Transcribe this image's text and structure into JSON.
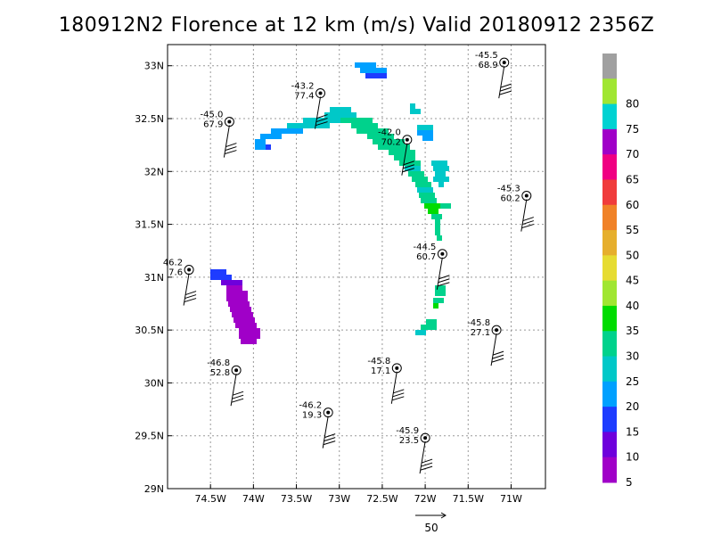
{
  "chart_data": {
    "type": "scatter",
    "title": "180912N2 Florence at 12 km (m/s) Valid 20180912 2356Z",
    "xlabel": "",
    "ylabel": "",
    "xlim": [
      -75.0,
      -70.6
    ],
    "ylim": [
      29.0,
      33.2
    ],
    "grid": true,
    "x_ticks": [
      {
        "value": -74.5,
        "label": "74.5W"
      },
      {
        "value": -74.0,
        "label": "74W"
      },
      {
        "value": -73.5,
        "label": "73.5W"
      },
      {
        "value": -73.0,
        "label": "73W"
      },
      {
        "value": -72.5,
        "label": "72.5W"
      },
      {
        "value": -72.0,
        "label": "72W"
      },
      {
        "value": -71.5,
        "label": "71.5W"
      },
      {
        "value": -71.0,
        "label": "71W"
      }
    ],
    "y_ticks": [
      {
        "value": 29.0,
        "label": "29N"
      },
      {
        "value": 29.5,
        "label": "29.5N"
      },
      {
        "value": 30.0,
        "label": "30N"
      },
      {
        "value": 30.5,
        "label": "30.5N"
      },
      {
        "value": 31.0,
        "label": "31N"
      },
      {
        "value": 31.5,
        "label": "31.5N"
      },
      {
        "value": 32.0,
        "label": "32N"
      },
      {
        "value": 32.5,
        "label": "32.5N"
      },
      {
        "value": 33.0,
        "label": "33N"
      }
    ],
    "colorbar": {
      "levels": [
        {
          "label": "",
          "color": "#a0a0a0"
        },
        {
          "label": "80",
          "color": "#a0e632"
        },
        {
          "label": "75",
          "color": "#00d2d2"
        },
        {
          "label": "70",
          "color": "#a000c8"
        },
        {
          "label": "65",
          "color": "#f00082"
        },
        {
          "label": "60",
          "color": "#f03c3c"
        },
        {
          "label": "55",
          "color": "#f08228"
        },
        {
          "label": "50",
          "color": "#e6af2d"
        },
        {
          "label": "45",
          "color": "#e6dc32"
        },
        {
          "label": "40",
          "color": "#a0e632"
        },
        {
          "label": "35",
          "color": "#00dc00"
        },
        {
          "label": "30",
          "color": "#00d28c"
        },
        {
          "label": "25",
          "color": "#00c8c8"
        },
        {
          "label": "20",
          "color": "#00a0ff"
        },
        {
          "label": "15",
          "color": "#1e3cff"
        },
        {
          "label": "10",
          "color": "#6e00dc"
        },
        {
          "label": "5",
          "color": "#a000c8"
        }
      ]
    },
    "stations": [
      {
        "lon": -71.08,
        "lat": 33.03,
        "val1": "-45.5",
        "val2": "68.9"
      },
      {
        "lon": -73.22,
        "lat": 32.74,
        "val1": "-43.2",
        "val2": "77.4"
      },
      {
        "lon": -74.28,
        "lat": 32.47,
        "val1": "-45.0",
        "val2": "67.9"
      },
      {
        "lon": -72.21,
        "lat": 32.3,
        "val1": "-42.0",
        "val2": "70.2"
      },
      {
        "lon": -70.82,
        "lat": 31.77,
        "val1": "-45.3",
        "val2": "60.2"
      },
      {
        "lon": -71.8,
        "lat": 31.22,
        "val1": "-44.5",
        "val2": "60.7"
      },
      {
        "lon": -74.75,
        "lat": 31.07,
        "val1": "46.2",
        "val2": "7.6"
      },
      {
        "lon": -71.17,
        "lat": 30.5,
        "val1": "-45.8",
        "val2": "27.1"
      },
      {
        "lon": -74.2,
        "lat": 30.12,
        "val1": "-46.8",
        "val2": "52.8"
      },
      {
        "lon": -72.33,
        "lat": 30.14,
        "val1": "-45.8",
        "val2": "17.1"
      },
      {
        "lon": -73.13,
        "lat": 29.72,
        "val1": "-46.2",
        "val2": "19.3"
      },
      {
        "lon": -72.0,
        "lat": 29.48,
        "val1": "-45.9",
        "val2": "23.5"
      }
    ],
    "scale_arrow_label": "50"
  }
}
